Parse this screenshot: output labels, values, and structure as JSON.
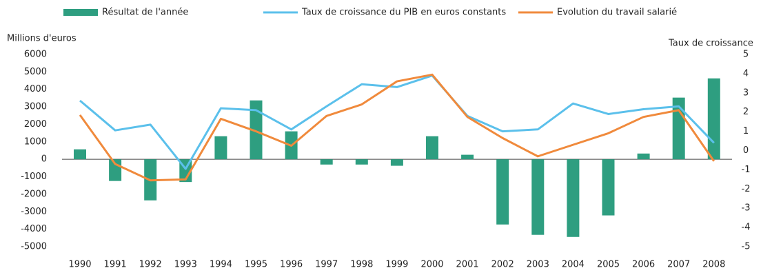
{
  "chart_data": {
    "type": "bar_line",
    "y_title": "Millions d'euros",
    "y2_title": "Taux de croissance",
    "categories": [
      "1990",
      "1991",
      "1992",
      "1993",
      "1994",
      "1995",
      "1996",
      "1997",
      "1998",
      "1999",
      "2000",
      "2001",
      "2002",
      "2003",
      "2004",
      "2005",
      "2006",
      "2007",
      "2008"
    ],
    "series": [
      {
        "name": "Résultat de l'année",
        "type": "bar",
        "color": "#2e9e80",
        "values": [
          570,
          -1240,
          -2350,
          -1300,
          1320,
          3370,
          1600,
          -300,
          -300,
          -370,
          1320,
          260,
          -3730,
          -4320,
          -4440,
          -3210,
          330,
          3530,
          4630
        ]
      },
      {
        "name": "Taux de croissance du PIB en euros constants",
        "type": "line",
        "axis": "y2",
        "color": "#5bc0eb",
        "values": [
          2.6,
          1.05,
          1.35,
          -0.95,
          2.2,
          2.1,
          1.1,
          2.3,
          3.45,
          3.3,
          3.9,
          1.8,
          1.0,
          1.1,
          2.45,
          1.9,
          2.15,
          2.3,
          0.4
        ]
      },
      {
        "name": "Evolution du travail salarié",
        "type": "line",
        "axis": "y2",
        "color": "#f08a3c",
        "values": [
          1.85,
          -0.7,
          -1.55,
          -1.5,
          1.65,
          1.0,
          0.25,
          1.8,
          2.4,
          3.6,
          3.95,
          1.75,
          0.65,
          -0.3,
          0.3,
          0.9,
          1.75,
          2.1,
          -0.55
        ]
      }
    ],
    "ylim": [
      -5000,
      6000
    ],
    "yticks": [
      6000,
      5000,
      4000,
      3000,
      2000,
      1000,
      0,
      -1000,
      -2000,
      -3000,
      -4000,
      -5000
    ],
    "y2lim": [
      -5,
      5
    ],
    "y2ticks": [
      5,
      4,
      3,
      2,
      1,
      0,
      -1,
      -2,
      -3,
      -4,
      -5
    ],
    "grid": false
  }
}
